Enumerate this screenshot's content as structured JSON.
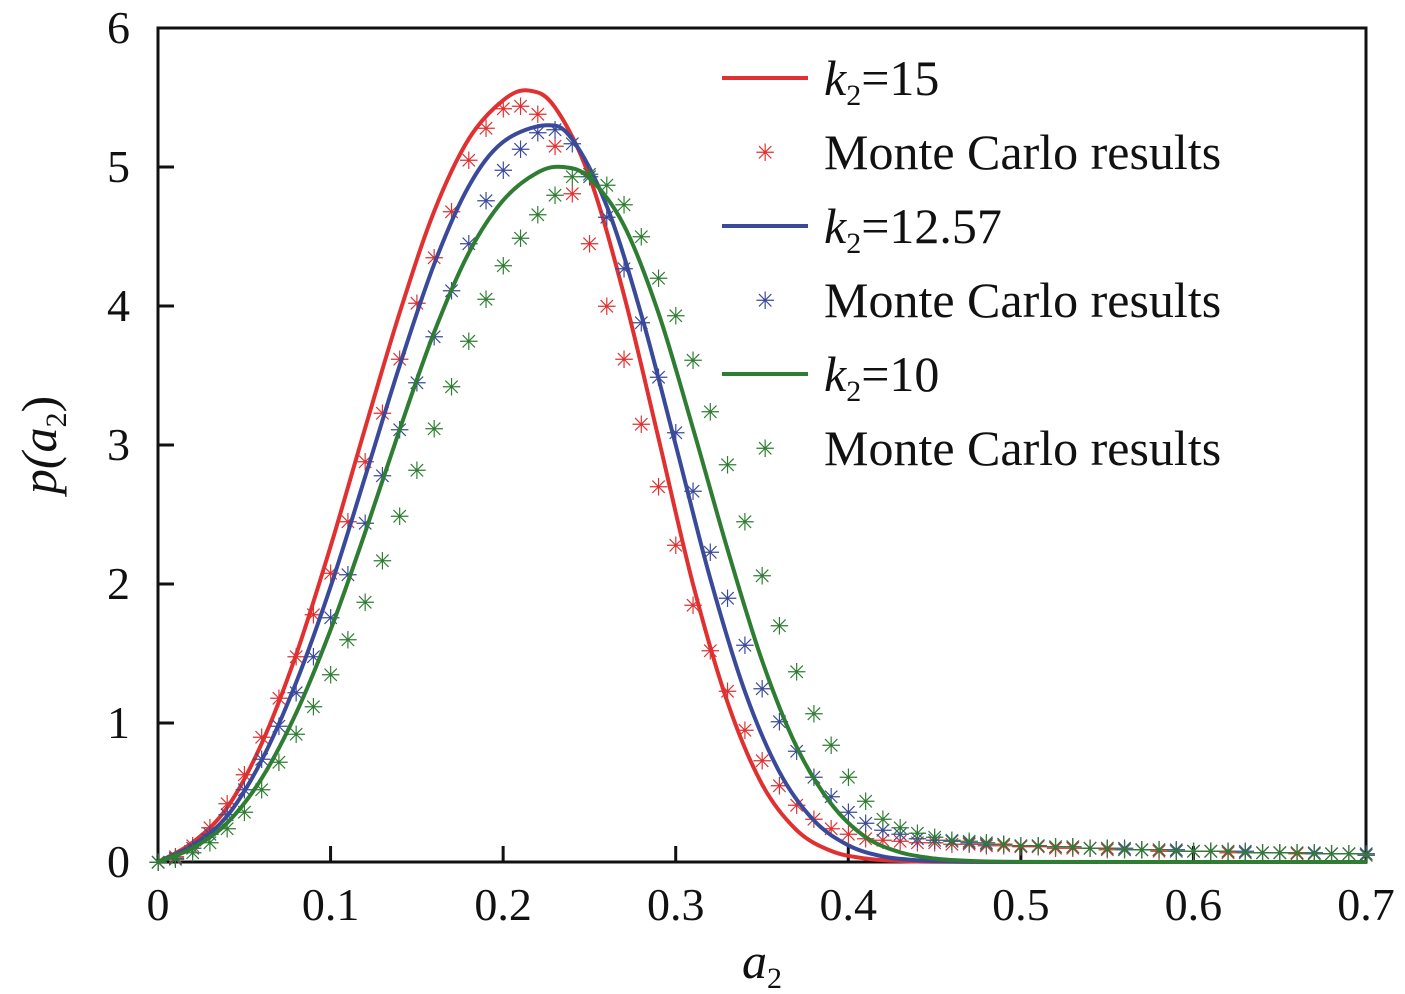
{
  "chart_data": {
    "type": "line",
    "title": "",
    "xlabel": "a",
    "xlabel_sub": "2",
    "ylabel_prefix": "p(",
    "ylabel_var": "a",
    "ylabel_sub": "2",
    "ylabel_suffix": ")",
    "xlim": [
      0,
      0.7
    ],
    "ylim": [
      0,
      6
    ],
    "x_ticks": [
      "0",
      "0.1",
      "0.2",
      "0.3",
      "0.4",
      "0.5",
      "0.6",
      "0.7"
    ],
    "y_ticks": [
      "0",
      "1",
      "2",
      "3",
      "4",
      "5",
      "6"
    ],
    "grid": false,
    "legend_position": "top-right",
    "series": [
      {
        "kind": "line",
        "legend_var": "k",
        "legend_sub": "2",
        "legend_value": "=15",
        "color": "#e03030",
        "x": [
          0,
          0.02,
          0.04,
          0.06,
          0.08,
          0.1,
          0.12,
          0.14,
          0.16,
          0.18,
          0.2,
          0.215,
          0.23,
          0.25,
          0.27,
          0.29,
          0.31,
          0.33,
          0.35,
          0.37,
          0.39,
          0.41,
          0.43,
          0.45,
          0.5,
          0.6,
          0.7
        ],
        "y": [
          0,
          0.14,
          0.39,
          0.85,
          1.49,
          2.27,
          3.12,
          3.95,
          4.68,
          5.2,
          5.48,
          5.55,
          5.43,
          4.93,
          4.08,
          3.05,
          2.0,
          1.15,
          0.56,
          0.23,
          0.08,
          0.025,
          0.007,
          0.002,
          0,
          0,
          0
        ]
      },
      {
        "kind": "markers",
        "legend_label": "Monte Carlo results",
        "color": "#e03030",
        "x": [
          0,
          0.01,
          0.02,
          0.03,
          0.04,
          0.05,
          0.06,
          0.07,
          0.08,
          0.09,
          0.1,
          0.11,
          0.12,
          0.13,
          0.14,
          0.15,
          0.16,
          0.17,
          0.18,
          0.19,
          0.2,
          0.21,
          0.22,
          0.23,
          0.24,
          0.25,
          0.26,
          0.27,
          0.28,
          0.29,
          0.3,
          0.31,
          0.32,
          0.33,
          0.34,
          0.35,
          0.36,
          0.37,
          0.38,
          0.39,
          0.4,
          0.41,
          0.42,
          0.43,
          0.44,
          0.45,
          0.46,
          0.47,
          0.48,
          0.49,
          0.5,
          0.51,
          0.52,
          0.53,
          0.54,
          0.55,
          0.56,
          0.57,
          0.58,
          0.59,
          0.6,
          0.61,
          0.62,
          0.63,
          0.64,
          0.65,
          0.66,
          0.67,
          0.68,
          0.69,
          0.7
        ],
        "y": [
          0,
          0.04,
          0.12,
          0.25,
          0.42,
          0.63,
          0.9,
          1.18,
          1.48,
          1.78,
          2.08,
          2.45,
          2.88,
          3.23,
          3.62,
          4.02,
          4.35,
          4.68,
          5.05,
          5.28,
          5.42,
          5.44,
          5.38,
          5.15,
          4.81,
          4.45,
          4.0,
          3.62,
          3.15,
          2.7,
          2.28,
          1.85,
          1.52,
          1.23,
          0.95,
          0.73,
          0.55,
          0.41,
          0.31,
          0.24,
          0.2,
          0.17,
          0.16,
          0.15,
          0.14,
          0.14,
          0.13,
          0.13,
          0.12,
          0.12,
          0.11,
          0.11,
          0.1,
          0.1,
          0.1,
          0.09,
          0.09,
          0.09,
          0.08,
          0.08,
          0.08,
          0.08,
          0.07,
          0.07,
          0.07,
          0.07,
          0.06,
          0.06,
          0.06,
          0.06,
          0.05
        ]
      },
      {
        "kind": "line",
        "legend_var": "k",
        "legend_sub": "2",
        "legend_value": "=12.57",
        "color": "#3a4a9a",
        "x": [
          0,
          0.02,
          0.04,
          0.06,
          0.08,
          0.1,
          0.12,
          0.14,
          0.16,
          0.18,
          0.2,
          0.225,
          0.24,
          0.26,
          0.28,
          0.3,
          0.32,
          0.34,
          0.36,
          0.38,
          0.4,
          0.42,
          0.44,
          0.46,
          0.5,
          0.6,
          0.7
        ],
        "y": [
          0,
          0.12,
          0.33,
          0.73,
          1.29,
          1.98,
          2.77,
          3.57,
          4.3,
          4.86,
          5.18,
          5.3,
          5.2,
          4.72,
          3.94,
          3.0,
          2.04,
          1.23,
          0.65,
          0.3,
          0.12,
          0.04,
          0.013,
          0.004,
          0,
          0,
          0
        ]
      },
      {
        "kind": "markers",
        "legend_label": "Monte Carlo results",
        "color": "#3a4a9a",
        "x": [
          0,
          0.01,
          0.02,
          0.03,
          0.04,
          0.05,
          0.06,
          0.07,
          0.08,
          0.09,
          0.1,
          0.11,
          0.12,
          0.13,
          0.14,
          0.15,
          0.16,
          0.17,
          0.18,
          0.19,
          0.2,
          0.21,
          0.22,
          0.23,
          0.24,
          0.25,
          0.26,
          0.27,
          0.28,
          0.29,
          0.3,
          0.31,
          0.32,
          0.33,
          0.34,
          0.35,
          0.36,
          0.37,
          0.38,
          0.39,
          0.4,
          0.41,
          0.42,
          0.43,
          0.44,
          0.45,
          0.46,
          0.47,
          0.48,
          0.49,
          0.5,
          0.51,
          0.52,
          0.53,
          0.54,
          0.55,
          0.56,
          0.57,
          0.58,
          0.59,
          0.6,
          0.61,
          0.62,
          0.63,
          0.64,
          0.65,
          0.66,
          0.67,
          0.68,
          0.69,
          0.7
        ],
        "y": [
          0,
          0.03,
          0.1,
          0.2,
          0.34,
          0.52,
          0.74,
          0.98,
          1.22,
          1.48,
          1.76,
          2.07,
          2.44,
          2.78,
          3.11,
          3.45,
          3.78,
          4.11,
          4.45,
          4.76,
          4.98,
          5.13,
          5.25,
          5.27,
          5.17,
          4.93,
          4.64,
          4.27,
          3.88,
          3.49,
          3.09,
          2.67,
          2.23,
          1.9,
          1.56,
          1.25,
          1.01,
          0.8,
          0.61,
          0.47,
          0.36,
          0.28,
          0.23,
          0.2,
          0.17,
          0.16,
          0.15,
          0.14,
          0.13,
          0.13,
          0.12,
          0.12,
          0.11,
          0.11,
          0.1,
          0.1,
          0.1,
          0.09,
          0.09,
          0.09,
          0.08,
          0.08,
          0.08,
          0.08,
          0.07,
          0.07,
          0.07,
          0.07,
          0.06,
          0.06,
          0.06
        ]
      },
      {
        "kind": "line",
        "legend_var": "k",
        "legend_sub": "2",
        "legend_value": "=10",
        "color": "#2e7d32",
        "x": [
          0,
          0.02,
          0.04,
          0.06,
          0.08,
          0.1,
          0.12,
          0.14,
          0.16,
          0.18,
          0.2,
          0.22,
          0.235,
          0.25,
          0.27,
          0.29,
          0.31,
          0.33,
          0.35,
          0.37,
          0.39,
          0.41,
          0.43,
          0.45,
          0.47,
          0.5,
          0.6,
          0.7
        ],
        "y": [
          0,
          0.1,
          0.28,
          0.6,
          1.07,
          1.67,
          2.37,
          3.11,
          3.81,
          4.38,
          4.76,
          4.96,
          5.0,
          4.92,
          4.58,
          3.95,
          3.12,
          2.25,
          1.45,
          0.83,
          0.42,
          0.18,
          0.07,
          0.025,
          0.008,
          0.001,
          0,
          0
        ]
      },
      {
        "kind": "markers",
        "legend_label": "Monte Carlo results",
        "color": "#2e7d32",
        "x": [
          0,
          0.01,
          0.02,
          0.03,
          0.04,
          0.05,
          0.06,
          0.07,
          0.08,
          0.09,
          0.1,
          0.11,
          0.12,
          0.13,
          0.14,
          0.15,
          0.16,
          0.17,
          0.18,
          0.19,
          0.2,
          0.21,
          0.22,
          0.23,
          0.24,
          0.25,
          0.26,
          0.27,
          0.28,
          0.29,
          0.3,
          0.31,
          0.32,
          0.33,
          0.34,
          0.35,
          0.36,
          0.37,
          0.38,
          0.39,
          0.4,
          0.41,
          0.42,
          0.43,
          0.44,
          0.45,
          0.46,
          0.47,
          0.48,
          0.49,
          0.5,
          0.51,
          0.52,
          0.53,
          0.54,
          0.55,
          0.56,
          0.57,
          0.58,
          0.59,
          0.6,
          0.61,
          0.62,
          0.63,
          0.64,
          0.65,
          0.66,
          0.67,
          0.68,
          0.69,
          0.7
        ],
        "y": [
          0,
          0.02,
          0.07,
          0.14,
          0.24,
          0.36,
          0.52,
          0.72,
          0.92,
          1.12,
          1.35,
          1.6,
          1.87,
          2.17,
          2.49,
          2.82,
          3.12,
          3.42,
          3.75,
          4.05,
          4.29,
          4.49,
          4.66,
          4.8,
          4.93,
          4.95,
          4.87,
          4.73,
          4.5,
          4.2,
          3.93,
          3.61,
          3.24,
          2.86,
          2.45,
          2.06,
          1.7,
          1.37,
          1.07,
          0.84,
          0.61,
          0.44,
          0.31,
          0.25,
          0.21,
          0.18,
          0.16,
          0.15,
          0.14,
          0.13,
          0.12,
          0.12,
          0.11,
          0.11,
          0.1,
          0.1,
          0.09,
          0.09,
          0.09,
          0.08,
          0.08,
          0.08,
          0.08,
          0.07,
          0.07,
          0.07,
          0.07,
          0.06,
          0.06,
          0.06,
          0.05
        ]
      }
    ]
  }
}
